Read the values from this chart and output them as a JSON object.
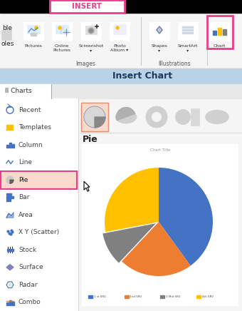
{
  "bg_color": "#f0f0f0",
  "white": "#ffffff",
  "black": "#000000",
  "magenta": "#e83e8c",
  "ribbon_bg": "#f5f5f5",
  "header_blue": "#b8d3e8",
  "tab_bg": "#e0e0e0",
  "sidebar_bg": "#ffffff",
  "sidebar_line": "#cccccc",
  "pie_highlight": "#f9d9cc",
  "pie_border": "#e8a080",
  "insert_tab_text": "INSERT",
  "ribbon_labels": [
    "Pictures",
    "Online\nPictures",
    "Screenshot",
    "Photo\nAlbum▾",
    "Shapes",
    "SmartArt\n▾",
    "Chart"
  ],
  "group_labels": [
    "Images",
    "Illustrations"
  ],
  "header_text": "Insert Chart",
  "all_charts_text": "ll Charts",
  "sidebar_items": [
    "Recent",
    "Templates",
    "Column",
    "Line",
    "Pie",
    "Bar",
    "Area",
    "X Y (Scatter)",
    "Stock",
    "Surface",
    "Radar",
    "Combo"
  ],
  "chart_title_text": "Chart Title",
  "pie_values": [
    40,
    22,
    10,
    28
  ],
  "pie_colors": [
    "#4472c4",
    "#ed7d31",
    "#808080",
    "#ffc000"
  ],
  "legend_labels": [
    "1 st SRV",
    "2nd SRV",
    "3 Mid SRV",
    "4th SRV"
  ],
  "dark_gray": "#404040",
  "med_gray": "#888888",
  "light_gray": "#d4d4d4",
  "icon_gray": "#b0b0b0",
  "icon_gray2": "#909090",
  "preview_bg": "#ffffff"
}
